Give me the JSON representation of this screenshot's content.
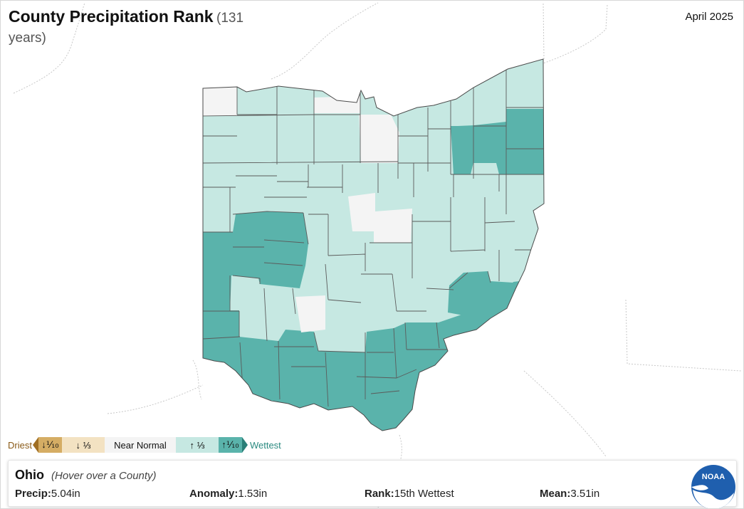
{
  "header": {
    "title": "County Precipitation Rank",
    "subtitle_paren": "(131",
    "subtitle_years": "years)",
    "date": "April 2025"
  },
  "legend": {
    "driest_label": "Driest",
    "wettest_label": "Wettest",
    "items": [
      {
        "label": "↓⅒",
        "color": "#d5ad64"
      },
      {
        "label": "↓ ⅓",
        "color": "#f3e2c2"
      },
      {
        "label": "Near Normal",
        "color": "#f4f4f4"
      },
      {
        "label": "↑ ⅓",
        "color": "#c6e8e2"
      },
      {
        "label": "↑⅒",
        "color": "#5ab3ab"
      }
    ]
  },
  "info": {
    "state": "Ohio",
    "hint": "(Hover over a County)",
    "precip_label": "Precip:",
    "precip_value": "5.04in",
    "anomaly_label": "Anomaly:",
    "anomaly_value": "1.53in",
    "rank_label": "Rank:",
    "rank_value": "15th Wettest",
    "mean_label": "Mean:",
    "mean_value": "3.51in"
  },
  "logo": {
    "text": "NOAA",
    "icon": "noaa-logo-icon"
  },
  "colors": {
    "near_normal": "#f4f4f4",
    "wetter_third": "#c6e8e2",
    "wettest_tenth": "#5ab3ab",
    "county_border": "#555555"
  },
  "map": {
    "state_name": "Ohio",
    "county_categories_summary": {
      "near_normal": 8,
      "wettest_tenth": 33,
      "wetter_third": 47
    }
  }
}
